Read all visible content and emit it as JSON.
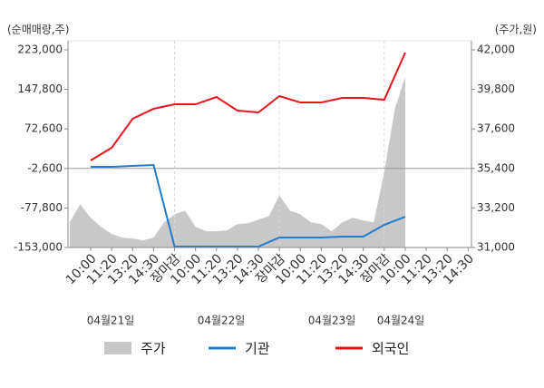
{
  "chart_data": {
    "type": "line",
    "y_axis_label": "(순매매량,주)",
    "y2_axis_label": "(주가,원)",
    "categories": [
      "10:00",
      "11:20",
      "13:20",
      "14:30",
      "장마감",
      "10:00",
      "11:20",
      "13:20",
      "14:30",
      "장마감",
      "10:00",
      "11:20",
      "13:20",
      "14:30",
      "장마감",
      "10:00",
      "11:20",
      "13:20",
      "14:30"
    ],
    "category_colors": [
      "#333",
      "#333",
      "#333",
      "#333",
      "#e8141c",
      "#333",
      "#333",
      "#333",
      "#333",
      "#e8141c",
      "#333",
      "#333",
      "#333",
      "#333",
      "#e8141c",
      "#333",
      "#333",
      "#333",
      "#333"
    ],
    "dates": [
      "04월21일",
      "04월22일",
      "04월23일",
      "04월24일"
    ],
    "series": [
      {
        "name": "주가",
        "type": "area",
        "axis": "y2",
        "color": "#c8c8c8",
        "x": [
          -1,
          -0.5,
          0,
          0.5,
          1,
          1.5,
          2,
          2.5,
          3,
          3.5,
          4,
          4.5,
          5,
          5.5,
          6,
          6.5,
          7,
          7.5,
          8,
          8.5,
          9,
          9.5,
          10,
          10.5,
          11,
          11.5,
          12,
          12.5,
          13,
          13.5,
          14,
          14.5,
          15
        ],
        "values": [
          32400,
          33400,
          32650,
          32150,
          31750,
          31550,
          31500,
          31400,
          31550,
          32400,
          32850,
          33050,
          32150,
          31900,
          31900,
          31950,
          32300,
          32350,
          32550,
          32750,
          33900,
          33050,
          32850,
          32400,
          32300,
          31900,
          32400,
          32650,
          32500,
          32400,
          35200,
          38700,
          40500
        ]
      },
      {
        "name": "기관",
        "type": "line",
        "color": "#1f7ccf",
        "values": [
          500,
          500,
          2200,
          4000,
          -151300,
          -151300,
          -151300,
          -151300,
          -151300,
          -134000,
          -134000,
          -134000,
          -132300,
          -132300,
          -109900,
          -94400,
          null,
          null,
          null
        ]
      },
      {
        "name": "외국인",
        "type": "line",
        "color": "#e8141c",
        "values": [
          12600,
          36700,
          91900,
          110900,
          119500,
          119500,
          133300,
          107400,
          104000,
          135000,
          122900,
          122900,
          131600,
          131600,
          128100,
          217800,
          null,
          null,
          null
        ]
      }
    ],
    "ylim": [
      -153000,
      223000
    ],
    "yticks": [
      {
        "value": 223000,
        "label": "223,000"
      },
      {
        "value": 147800,
        "label": "147,800"
      },
      {
        "value": 72600,
        "label": "72,600"
      },
      {
        "value": -2600,
        "label": "-2,600"
      },
      {
        "value": -77800,
        "label": "-77,800"
      },
      {
        "value": -153000,
        "label": "-153,000"
      }
    ],
    "y2lim": [
      31000,
      42000
    ],
    "y2ticks": [
      {
        "value": 42000,
        "label": "42,000"
      },
      {
        "value": 39800,
        "label": "39,800"
      },
      {
        "value": 37600,
        "label": "37,600"
      },
      {
        "value": 35400,
        "label": "35,400"
      },
      {
        "value": 33200,
        "label": "33,200"
      },
      {
        "value": 31000,
        "label": "31,000"
      }
    ]
  }
}
